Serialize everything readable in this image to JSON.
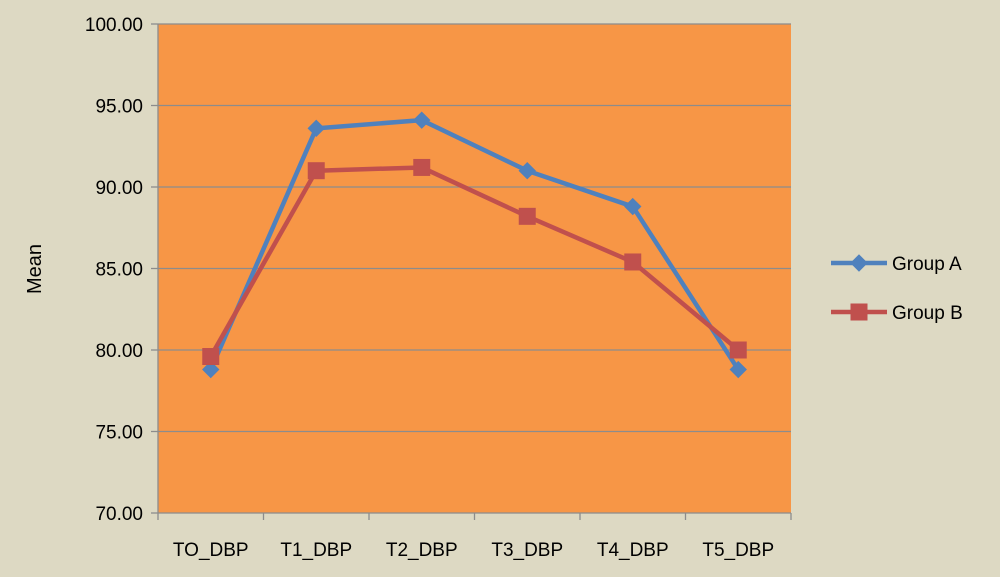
{
  "chart_data": {
    "type": "line",
    "title": "",
    "xlabel": "",
    "ylabel": "Mean",
    "ylim": [
      70,
      100
    ],
    "y_ticks": [
      "70.00",
      "75.00",
      "80.00",
      "85.00",
      "90.00",
      "95.00",
      "100.00"
    ],
    "y_tick_values": [
      70,
      75,
      80,
      85,
      90,
      95,
      100
    ],
    "categories": [
      "TO_DBP",
      "T1_DBP",
      "T2_DBP",
      "T3_DBP",
      "T4_DBP",
      "T5_DBP"
    ],
    "grid": true,
    "legend_position": "right",
    "plot_background": "#f79646",
    "page_background": "#ddd9c3",
    "series": [
      {
        "name": "Group A",
        "values": [
          78.8,
          93.6,
          94.1,
          91.0,
          88.8,
          78.8
        ],
        "color": "#4f81bd",
        "marker": "diamond"
      },
      {
        "name": "Group B",
        "values": [
          79.6,
          91.0,
          91.2,
          88.2,
          85.4,
          80.0
        ],
        "color": "#c0504d",
        "marker": "square"
      }
    ]
  }
}
